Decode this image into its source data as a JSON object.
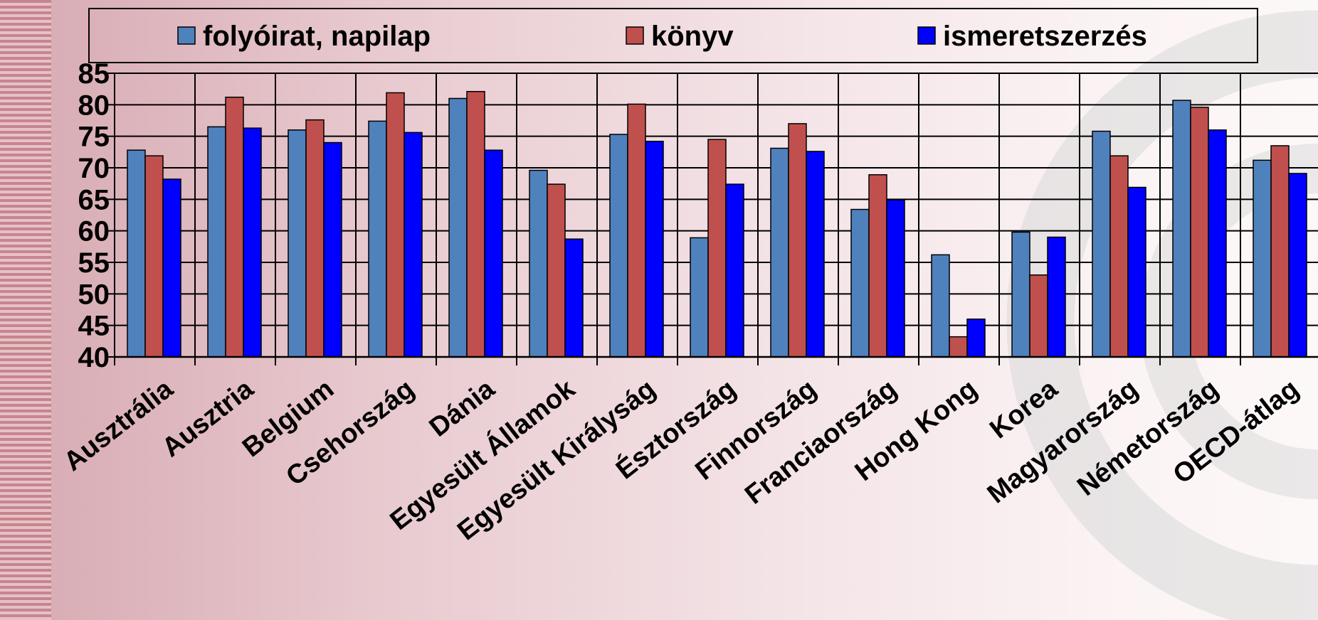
{
  "chart_data": {
    "type": "bar",
    "categories": [
      "Ausztrália",
      "Ausztria",
      "Belgium",
      "Csehország",
      "Dánia",
      "Egyesült Államok",
      "Egyesült Királyság",
      "Észtország",
      "Finnország",
      "Franciaország",
      "Hong Kong",
      "Korea",
      "Magyarország",
      "Németország",
      "OECD-átlag"
    ],
    "series": [
      {
        "name": "folyóirat, napilap",
        "color": "#4f81bd",
        "values": [
          72.8,
          76.5,
          76.0,
          77.4,
          81.0,
          69.6,
          75.3,
          58.9,
          73.1,
          63.4,
          56.2,
          59.8,
          75.8,
          80.7,
          71.2
        ]
      },
      {
        "name": "könyv",
        "color": "#c0504d",
        "values": [
          71.9,
          81.2,
          77.6,
          81.9,
          82.1,
          67.4,
          80.1,
          74.5,
          77.0,
          68.9,
          43.2,
          53.0,
          71.9,
          79.6,
          73.5
        ]
      },
      {
        "name": "ismeretszerzés",
        "color": "#0000ff",
        "values": [
          68.2,
          76.3,
          74.0,
          75.6,
          72.8,
          58.7,
          74.2,
          67.4,
          72.6,
          64.9,
          46.0,
          59.0,
          66.9,
          76.0,
          69.1
        ]
      }
    ],
    "yticks": [
      40,
      45,
      50,
      55,
      60,
      65,
      70,
      75,
      80,
      85
    ],
    "ylim": [
      40,
      85
    ],
    "grid": true,
    "legend": "top",
    "title": "",
    "xlabel": "",
    "ylabel": ""
  }
}
